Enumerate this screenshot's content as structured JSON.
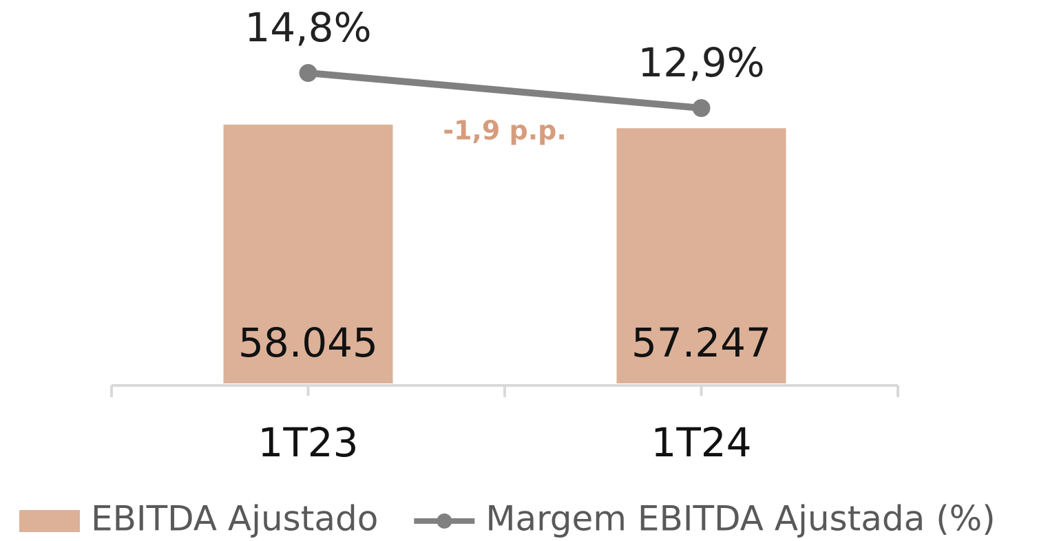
{
  "chart_data": {
    "type": "bar",
    "categories": [
      "1T23",
      "1T24"
    ],
    "series": [
      {
        "name": "EBITDA Ajustado",
        "type": "bar",
        "color": "#dcb198",
        "values": [
          58045,
          57247
        ],
        "value_labels": [
          "58.045",
          "57.247"
        ]
      },
      {
        "name": "Margem EBITDA Ajustada (%)",
        "type": "line",
        "axis": "y2",
        "color": "#808080",
        "values": [
          14.8,
          12.9
        ],
        "value_labels": [
          "14,8%",
          "12,9%"
        ]
      }
    ],
    "ylim": [
      0,
      86000
    ],
    "y2lim": [
      -2,
      18.75
    ],
    "annotations": [
      "-1,9 p.p."
    ],
    "annotation_color": "#d69c7c",
    "legend": "bottom"
  }
}
